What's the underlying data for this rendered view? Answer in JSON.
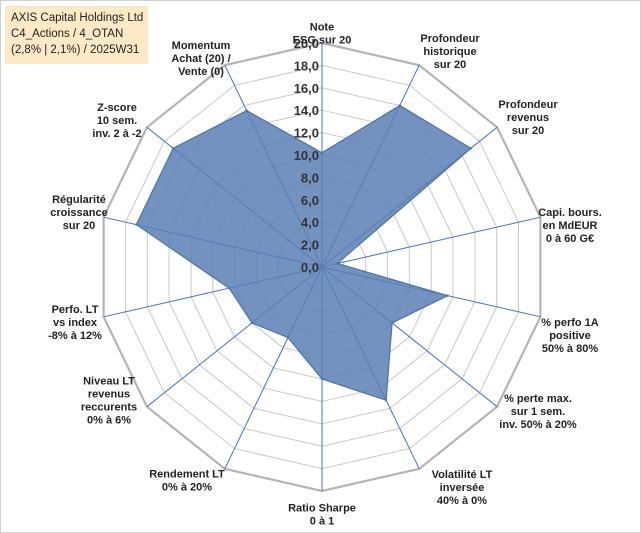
{
  "info_box": {
    "line1": "AXIS Capital Holdings Ltd",
    "line2": "C4_Actions / 4_OTAN",
    "line3": "(2,8% | 2,1%) / 2025W31"
  },
  "colors": {
    "fill": "#5a7fb4",
    "stroke": "#4e73a8",
    "spoke": "#4472c4",
    "grid": "#c8c8c8",
    "outer_grid": "#b4b4b4",
    "info_bg": "#fde9c6"
  },
  "chart_data": {
    "type": "radar",
    "title": "",
    "r_min": 0,
    "r_max": 20,
    "r_step": 2,
    "tick_labels": [
      "0,0",
      "2,0",
      "4,0",
      "6,0",
      "8,0",
      "10,0",
      "12,0",
      "14,0",
      "16,0",
      "18,0",
      "20,0"
    ],
    "categories": [
      [
        "Note",
        "ESG sur 20"
      ],
      [
        "Profondeur",
        "historique",
        "sur 20"
      ],
      [
        "Profondeur",
        "revenus",
        "sur 20"
      ],
      [
        "Capi. bours.",
        "en MdEUR",
        "0 à 60 G€"
      ],
      [
        "% perfo 1A",
        "positive",
        "50% à 80%"
      ],
      [
        "% perte max.",
        "sur 1 sem.",
        "inv. 50% à 20%"
      ],
      [
        "Volatilité LT",
        "inversée",
        "40% à 0%"
      ],
      [
        "Ratio Sharpe",
        "0 à 1"
      ],
      [
        "Rendement LT",
        "0% à 20%"
      ],
      [
        "Niveau LT",
        "revenus",
        "reccurents",
        "0% à 6%"
      ],
      [
        "Perfo. LT",
        "vs index",
        "-8% à 12%"
      ],
      [
        "Régularité",
        "croissance",
        "sur 20"
      ],
      [
        "Z-score",
        "10 sem.",
        "inv. 2 à -2"
      ],
      [
        "Momentum",
        "Achat (20) /",
        "Vente (0)"
      ]
    ],
    "series": [
      {
        "values": [
          10.2,
          16,
          17,
          1.4,
          11.5,
          8,
          13.2,
          10,
          7,
          8,
          8.5,
          17,
          17,
          15.5
        ]
      }
    ]
  }
}
